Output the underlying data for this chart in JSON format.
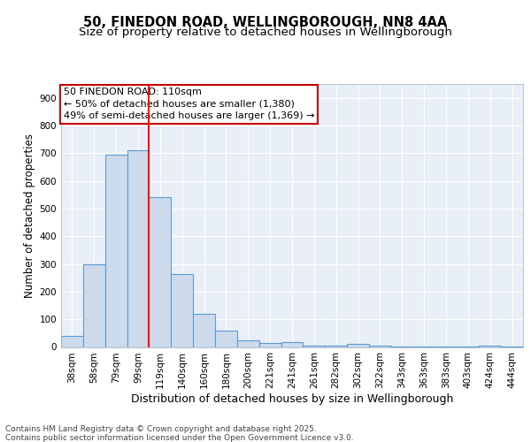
{
  "title1": "50, FINEDON ROAD, WELLINGBOROUGH, NN8 4AA",
  "title2": "Size of property relative to detached houses in Wellingborough",
  "xlabel": "Distribution of detached houses by size in Wellingborough",
  "ylabel": "Number of detached properties",
  "bar_values": [
    40,
    300,
    695,
    710,
    540,
    265,
    120,
    58,
    25,
    14,
    18,
    5,
    4,
    10,
    5,
    2,
    3,
    2,
    1,
    5,
    1
  ],
  "categories": [
    "38sqm",
    "58sqm",
    "79sqm",
    "99sqm",
    "119sqm",
    "140sqm",
    "160sqm",
    "180sqm",
    "200sqm",
    "221sqm",
    "241sqm",
    "261sqm",
    "282sqm",
    "302sqm",
    "322sqm",
    "343sqm",
    "363sqm",
    "383sqm",
    "403sqm",
    "424sqm",
    "444sqm"
  ],
  "bar_color": "#cddaeb",
  "bar_edge_color": "#5b9bd5",
  "red_line_x": 3.5,
  "ylim": [
    0,
    950
  ],
  "yticks": [
    0,
    100,
    200,
    300,
    400,
    500,
    600,
    700,
    800,
    900
  ],
  "annotation_title": "50 FINEDON ROAD: 110sqm",
  "annotation_line1": "← 50% of detached houses are smaller (1,380)",
  "annotation_line2": "49% of semi-detached houses are larger (1,369) →",
  "annotation_box_color": "#ffffff",
  "annotation_box_edge": "#cc0000",
  "footer1": "Contains HM Land Registry data © Crown copyright and database right 2025.",
  "footer2": "Contains public sector information licensed under the Open Government Licence v3.0.",
  "bg_color": "#e8eff8",
  "grid_color": "#ffffff",
  "title1_fontsize": 10.5,
  "title2_fontsize": 9.5,
  "xlabel_fontsize": 9,
  "ylabel_fontsize": 8.5,
  "tick_fontsize": 7.5,
  "ann_fontsize": 8,
  "footer_fontsize": 6.5
}
